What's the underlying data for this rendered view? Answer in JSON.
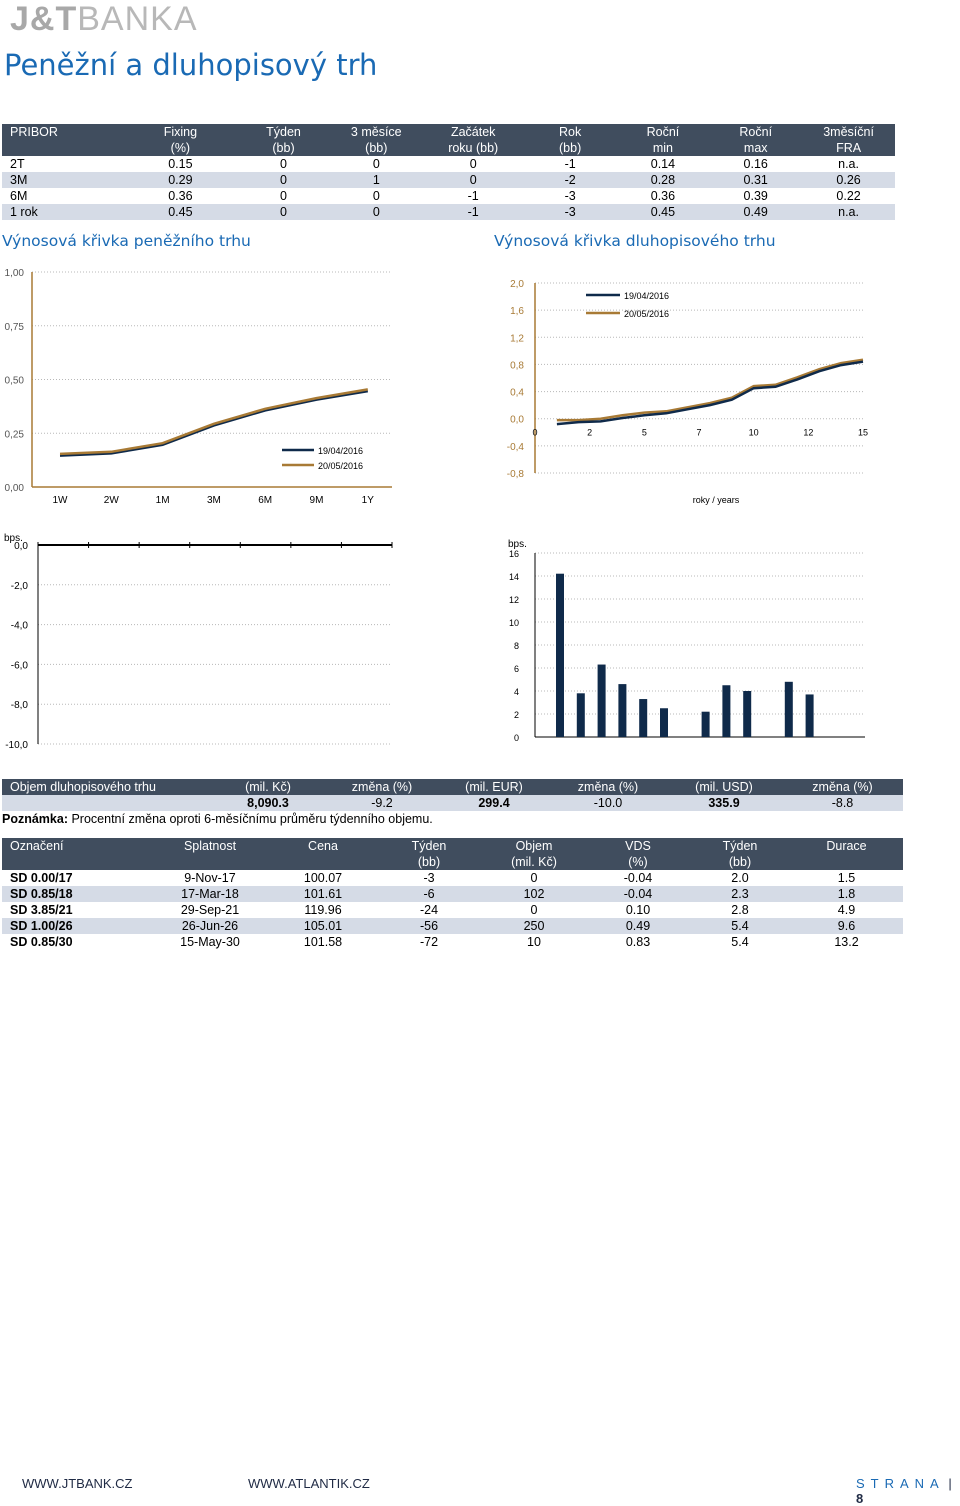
{
  "header": {
    "logo_left": "J&T",
    "logo_right": "BANKA",
    "page_title": "Peněžní a dluhopisový trh"
  },
  "pribor_table": {
    "headers_row1": [
      "PRIBOR",
      "Fixing",
      "Týden",
      "3 měsíce",
      "Začátek",
      "Rok",
      "Roční",
      "Roční",
      "3měsíční"
    ],
    "headers_row2": [
      "",
      "(%)",
      "(bb)",
      "(bb)",
      "roku (bb)",
      "(bb)",
      "min",
      "max",
      "FRA"
    ],
    "rows": [
      [
        "2T",
        "0.15",
        "0",
        "0",
        "0",
        "-1",
        "0.14",
        "0.16",
        "n.a."
      ],
      [
        "3M",
        "0.29",
        "0",
        "1",
        "0",
        "-2",
        "0.28",
        "0.31",
        "0.26"
      ],
      [
        "6M",
        "0.36",
        "0",
        "0",
        "-1",
        "-3",
        "0.36",
        "0.39",
        "0.22"
      ],
      [
        "1 rok",
        "0.45",
        "0",
        "0",
        "-1",
        "-3",
        "0.45",
        "0.49",
        "n.a."
      ]
    ]
  },
  "money_curve_title": "Výnosová křivka peněžního trhu",
  "bond_curve_title": "Výnosová křivka dluhopisového trhu",
  "colors": {
    "navy": "#0f2a4a",
    "gold": "#a87a35",
    "header_bg": "#404d5e",
    "row_alt": "#d5dbe6",
    "title_blue": "#1a6ab4"
  },
  "chart_data": [
    {
      "type": "line",
      "x": [
        "1W",
        "2W",
        "1M",
        "3M",
        "6M",
        "9M",
        "1Y"
      ],
      "series": [
        {
          "name": "19/04/2016",
          "values": [
            0.15,
            0.16,
            0.2,
            0.29,
            0.36,
            0.41,
            0.45
          ],
          "color": "#0f2a4a"
        },
        {
          "name": "20/05/2016",
          "values": [
            0.15,
            0.16,
            0.2,
            0.29,
            0.36,
            0.41,
            0.45
          ],
          "color": "#a87a35"
        }
      ],
      "ylim": [
        0,
        1
      ],
      "y_ticks": [
        "0,00",
        "0,25",
        "0,50",
        "0,75",
        "1,00"
      ],
      "y_tick_values": [
        0,
        0.25,
        0.5,
        0.75,
        1
      ],
      "grid": true,
      "legend": "bottom-right"
    },
    {
      "type": "line",
      "x": [
        1,
        2,
        3,
        4,
        5,
        6,
        7,
        8,
        9,
        10,
        11,
        12,
        13,
        14,
        15
      ],
      "x_ticks": [
        "0",
        "2",
        "5",
        "7",
        "10",
        "12",
        "15"
      ],
      "x_tick_values": [
        0,
        2.5,
        5,
        7.5,
        10,
        12.5,
        15
      ],
      "xlabel": "roky / years",
      "series": [
        {
          "name": "19/04/2016",
          "values": [
            -0.08,
            -0.05,
            -0.04,
            0.01,
            0.05,
            0.08,
            0.14,
            0.2,
            0.28,
            0.45,
            0.47,
            0.58,
            0.7,
            0.79,
            0.84
          ],
          "color": "#0f2a4a"
        },
        {
          "name": "20/05/2016",
          "values": [
            -0.02,
            -0.02,
            0.0,
            0.05,
            0.09,
            0.11,
            0.17,
            0.23,
            0.31,
            0.48,
            0.5,
            0.61,
            0.73,
            0.82,
            0.87
          ],
          "color": "#a87a35"
        }
      ],
      "ylim": [
        -0.8,
        2.0
      ],
      "y_ticks": [
        "-0,8",
        "-0,4",
        "0,0",
        "0,4",
        "0,8",
        "1,2",
        "1,6",
        "2,0"
      ],
      "y_tick_values": [
        -0.8,
        -0.4,
        0,
        0.4,
        0.8,
        1.2,
        1.6,
        2.0
      ],
      "grid": true,
      "legend": "top-right"
    },
    {
      "type": "bar",
      "ylabel": "bps.",
      "ylim": [
        -10,
        0
      ],
      "y_ticks": [
        "-10,0",
        "-8,0",
        "-6,0",
        "-4,0",
        "-2,0",
        "0,0"
      ],
      "y_tick_values": [
        -10,
        -8,
        -6,
        -4,
        -2,
        0
      ],
      "category_count": 7,
      "values": [
        0,
        0,
        0,
        0,
        0,
        0,
        0
      ],
      "grid": true
    },
    {
      "type": "bar",
      "ylabel": "bps.",
      "ylim": [
        0,
        16
      ],
      "y_ticks": [
        "0",
        "2",
        "4",
        "6",
        "8",
        "10",
        "12",
        "14",
        "16"
      ],
      "y_tick_values": [
        0,
        2,
        4,
        6,
        8,
        10,
        12,
        14,
        16
      ],
      "values": [
        14.2,
        3.8,
        6.3,
        4.6,
        3.3,
        2.5,
        0,
        2.2,
        4.5,
        4.0,
        0,
        4.8,
        3.7
      ],
      "color": "#0f2a4a",
      "grid": true
    }
  ],
  "volume_table": {
    "headers": [
      "Objem dluhopisového trhu",
      "(mil. Kč)",
      "změna (%)",
      "(mil. EUR)",
      "změna (%)",
      "(mil. USD)",
      "změna (%)"
    ],
    "row": [
      "",
      "8,090.3",
      "-9.2",
      "299.4",
      "-10.0",
      "335.9",
      "-8.8"
    ]
  },
  "note": {
    "label": "Poznámka:",
    "text": " Procentní změna oproti 6-měsíčnímu průměru týdenního objemu."
  },
  "bonds_table": {
    "headers_row1": [
      "Označení",
      "Splatnost",
      "Cena",
      "Týden",
      "Objem",
      "VDS",
      "Týden",
      "Durace"
    ],
    "headers_row2": [
      "",
      "",
      "",
      "(bb)",
      "(mil. Kč)",
      "(%)",
      "(bb)",
      ""
    ],
    "rows": [
      [
        "SD 0.00/17",
        "9-Nov-17",
        "100.07",
        "-3",
        "0",
        "-0.04",
        "2.0",
        "1.5"
      ],
      [
        "SD 0.85/18",
        "17-Mar-18",
        "101.61",
        "-6",
        "102",
        "-0.04",
        "2.3",
        "1.8"
      ],
      [
        "SD 3.85/21",
        "29-Sep-21",
        "119.96",
        "-24",
        "0",
        "0.10",
        "2.8",
        "4.9"
      ],
      [
        "SD 1.00/26",
        "26-Jun-26",
        "105.01",
        "-56",
        "250",
        "0.49",
        "5.4",
        "9.6"
      ],
      [
        "SD 0.85/30",
        "15-May-30",
        "101.58",
        "-72",
        "10",
        "0.83",
        "5.4",
        "13.2"
      ]
    ]
  },
  "footer": {
    "link1": "WWW.JTBANK.CZ",
    "link2": "WWW.ATLANTIK.CZ",
    "page_label": "STRANA",
    "page_number": "8"
  }
}
